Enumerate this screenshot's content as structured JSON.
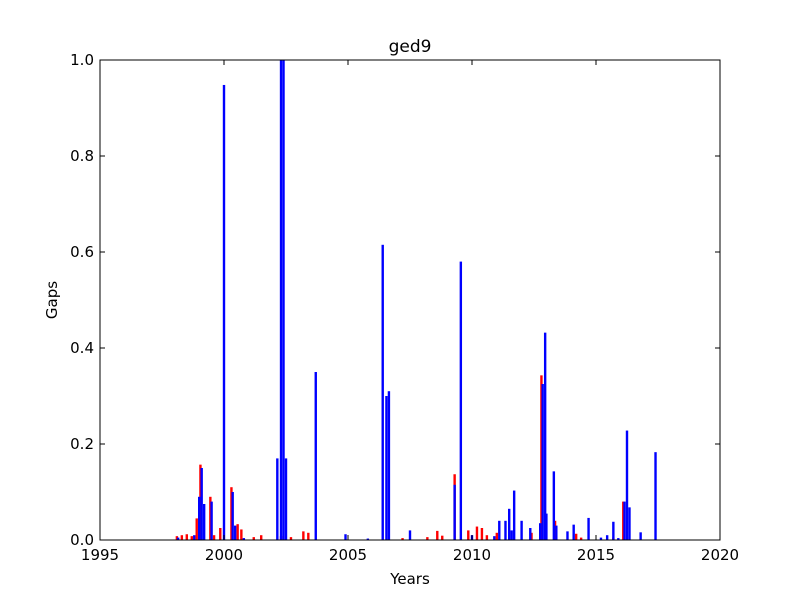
{
  "chart_data": {
    "type": "bar",
    "title": "ged9",
    "xlabel": "Years",
    "ylabel": "Gaps",
    "xlim": [
      1995,
      2020
    ],
    "ylim": [
      0.0,
      1.0
    ],
    "xticks": [
      "1995",
      "2000",
      "2005",
      "2010",
      "2015",
      "2020"
    ],
    "yticks": [
      "0.0",
      "0.2",
      "0.4",
      "0.6",
      "0.8",
      "1.0"
    ],
    "grid": false,
    "legend": "none",
    "colors": {
      "red_series": "#ff0000",
      "blue_series": "#0000ff"
    },
    "series": [
      {
        "color": "red",
        "points": [
          [
            1998.1,
            0.008
          ],
          [
            1998.3,
            0.01
          ],
          [
            1998.5,
            0.012
          ],
          [
            1998.7,
            0.008
          ],
          [
            1998.9,
            0.045
          ],
          [
            1999.05,
            0.157
          ],
          [
            1999.45,
            0.09
          ],
          [
            1999.6,
            0.01
          ],
          [
            1999.85,
            0.025
          ],
          [
            2000.3,
            0.11
          ],
          [
            2000.55,
            0.033
          ],
          [
            2000.7,
            0.022
          ],
          [
            2001.2,
            0.006
          ],
          [
            2001.5,
            0.01
          ],
          [
            2002.3,
            0.008
          ],
          [
            2002.7,
            0.006
          ],
          [
            2003.2,
            0.018
          ],
          [
            2003.4,
            0.015
          ],
          [
            2007.2,
            0.004
          ],
          [
            2008.2,
            0.006
          ],
          [
            2008.6,
            0.019
          ],
          [
            2008.8,
            0.009
          ],
          [
            2009.3,
            0.137
          ],
          [
            2009.85,
            0.02
          ],
          [
            2010.2,
            0.028
          ],
          [
            2010.4,
            0.025
          ],
          [
            2010.6,
            0.01
          ],
          [
            2011.0,
            0.015
          ],
          [
            2012.4,
            0.015
          ],
          [
            2012.8,
            0.343
          ],
          [
            2013.35,
            0.04
          ],
          [
            2014.2,
            0.013
          ],
          [
            2014.4,
            0.005
          ],
          [
            2015.7,
            0.005
          ],
          [
            2016.1,
            0.08
          ]
        ]
      },
      {
        "color": "blue",
        "points": [
          [
            1998.15,
            0.005
          ],
          [
            1998.8,
            0.01
          ],
          [
            1999.0,
            0.09
          ],
          [
            1999.1,
            0.15
          ],
          [
            1999.2,
            0.075
          ],
          [
            1999.5,
            0.08
          ],
          [
            2000.0,
            0.948
          ],
          [
            2000.35,
            0.1
          ],
          [
            2000.45,
            0.03
          ],
          [
            2000.8,
            0.004
          ],
          [
            2002.15,
            0.17
          ],
          [
            2002.3,
            1.0
          ],
          [
            2002.4,
            1.0
          ],
          [
            2002.5,
            0.17
          ],
          [
            2003.7,
            0.35
          ],
          [
            2004.9,
            0.012
          ],
          [
            2005.8,
            0.003
          ],
          [
            2006.4,
            0.615
          ],
          [
            2006.55,
            0.3
          ],
          [
            2006.65,
            0.31
          ],
          [
            2007.5,
            0.02
          ],
          [
            2009.3,
            0.115
          ],
          [
            2009.55,
            0.58
          ],
          [
            2010.0,
            0.01
          ],
          [
            2010.9,
            0.008
          ],
          [
            2011.1,
            0.04
          ],
          [
            2011.35,
            0.04
          ],
          [
            2011.5,
            0.065
          ],
          [
            2011.6,
            0.02
          ],
          [
            2011.7,
            0.103
          ],
          [
            2012.0,
            0.04
          ],
          [
            2012.35,
            0.025
          ],
          [
            2012.75,
            0.035
          ],
          [
            2012.85,
            0.325
          ],
          [
            2012.95,
            0.432
          ],
          [
            2013.0,
            0.055
          ],
          [
            2013.3,
            0.143
          ],
          [
            2013.4,
            0.03
          ],
          [
            2013.85,
            0.018
          ],
          [
            2014.1,
            0.032
          ],
          [
            2014.7,
            0.046
          ],
          [
            2015.2,
            0.005
          ],
          [
            2015.45,
            0.01
          ],
          [
            2015.7,
            0.038
          ],
          [
            2015.9,
            0.004
          ],
          [
            2016.15,
            0.08
          ],
          [
            2016.25,
            0.228
          ],
          [
            2016.35,
            0.068
          ],
          [
            2016.8,
            0.016
          ],
          [
            2017.4,
            0.183
          ]
        ]
      }
    ]
  }
}
